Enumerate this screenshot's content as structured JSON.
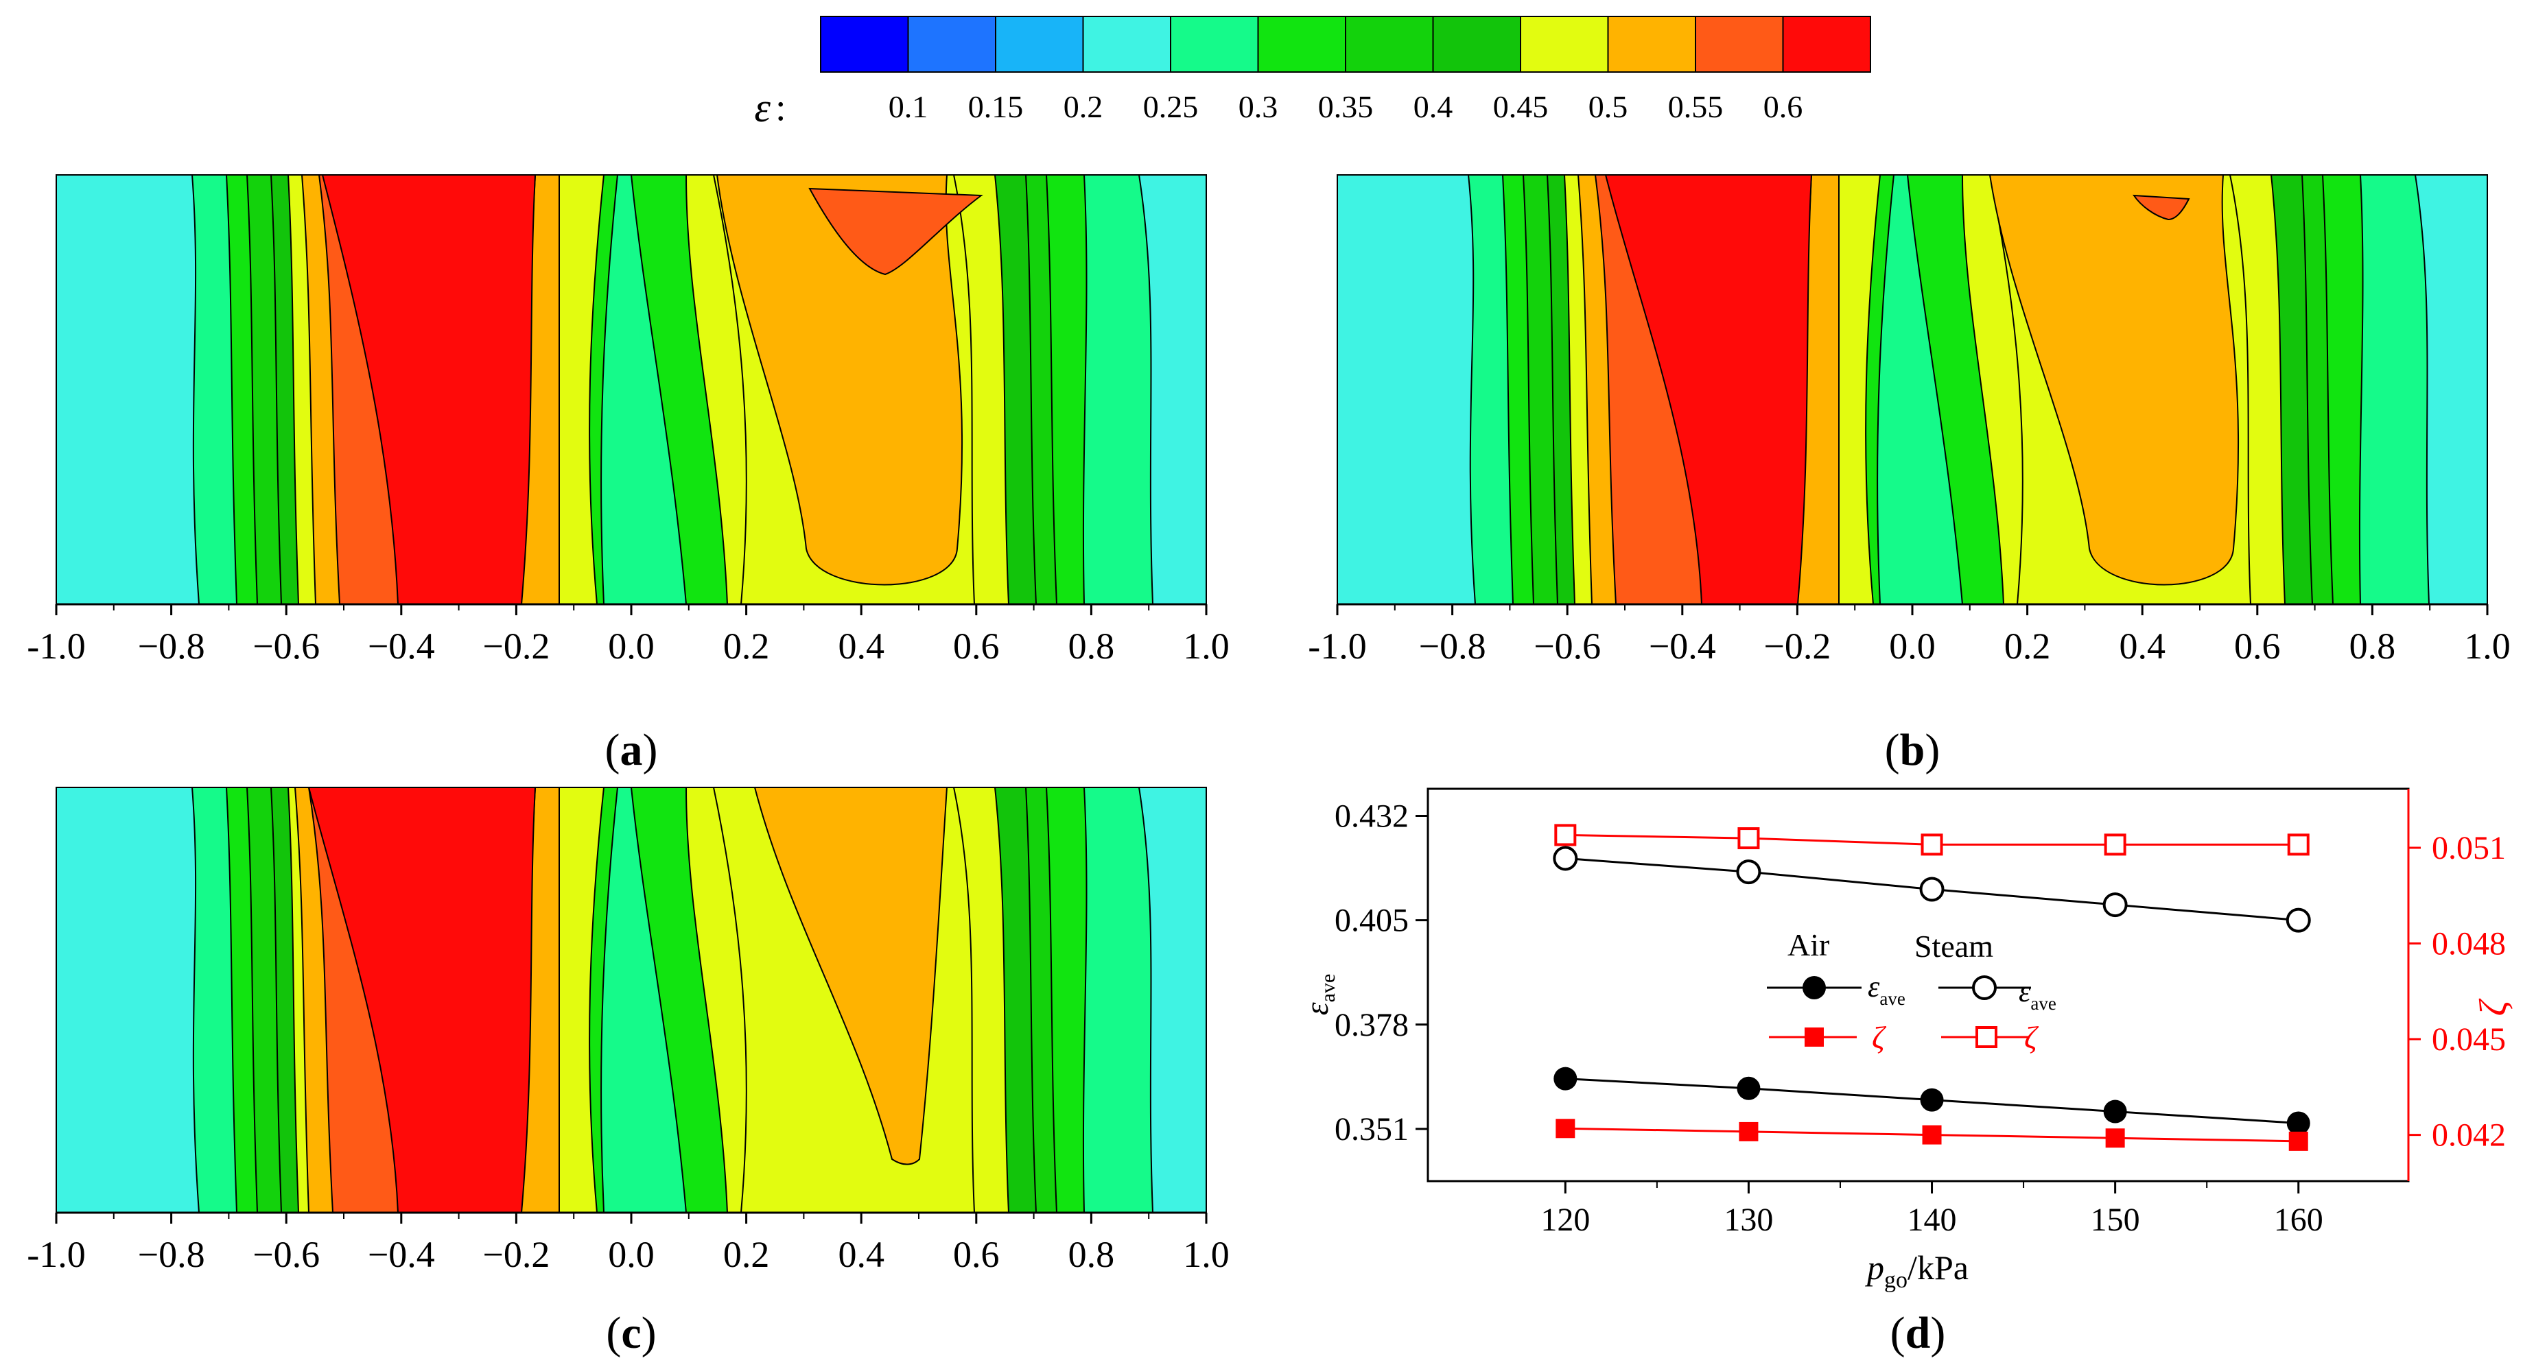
{
  "colorbar": {
    "symbol": "ε",
    "colon": ":",
    "colors": [
      "#0000ff",
      "#1e74ff",
      "#18b4f8",
      "#3ff3e3",
      "#15fa8a",
      "#11e410",
      "#13d20c",
      "#12c40b",
      "#e2fc10",
      "#ffb300",
      "#ff5a17",
      "#ff0a09"
    ],
    "tick_labels": [
      "0.1",
      "0.15",
      "0.2",
      "0.25",
      "0.3",
      "0.35",
      "0.4",
      "0.45",
      "0.5",
      "0.55",
      "0.6"
    ]
  },
  "panels": [
    {
      "id": "a",
      "letter": "a",
      "paren_open": "(",
      "paren_close": ")"
    },
    {
      "id": "b",
      "letter": "b",
      "paren_open": "(",
      "paren_close": ")"
    },
    {
      "id": "c",
      "letter": "c",
      "paren_open": "(",
      "paren_close": ")"
    },
    {
      "id": "d",
      "letter": "d",
      "paren_open": "(",
      "paren_close": ")"
    }
  ],
  "contour_axis": {
    "range": [
      -1.0,
      1.0
    ],
    "tick_values": [
      -1.0,
      -0.8,
      -0.6,
      -0.4,
      -0.2,
      0.0,
      0.2,
      0.4,
      0.6,
      0.8,
      1.0
    ],
    "tick_labels": [
      "-1.0",
      "−0.8",
      "−0.6",
      "−0.4",
      "−0.2",
      "0.0",
      "0.2",
      "0.4",
      "0.6",
      "0.8",
      "1.0"
    ]
  },
  "chart_data": [
    {
      "panel": "d",
      "type": "line",
      "xlabel_main": "p",
      "xlabel_sub": "go",
      "xlabel_unit": "/kPa",
      "ylabel_main": "ε",
      "ylabel_sub": "ave",
      "y2label": "ζ",
      "x": [
        120,
        130,
        140,
        150,
        160
      ],
      "xlim": [
        112.5,
        166
      ],
      "ylim": [
        0.3375,
        0.439
      ],
      "y2lim": [
        0.04055,
        0.05285
      ],
      "xticks": [
        120,
        130,
        140,
        150,
        160
      ],
      "xtick_labels": [
        "120",
        "130",
        "140",
        "150",
        "160"
      ],
      "yticks": [
        0.351,
        0.378,
        0.405,
        0.432
      ],
      "ytick_labels": [
        "0.351",
        "0.378",
        "0.405",
        "0.432"
      ],
      "y2ticks": [
        0.042,
        0.045,
        0.048,
        0.051
      ],
      "y2tick_labels": [
        "0.042",
        "0.045",
        "0.048",
        "0.051"
      ],
      "series": [
        {
          "name": "Air ε_ave",
          "axis": "left",
          "color": "#000000",
          "marker": "circle",
          "filled": true,
          "values": [
            0.364,
            0.3615,
            0.3585,
            0.3555,
            0.3525
          ]
        },
        {
          "name": "Steam ε_ave",
          "axis": "left",
          "color": "#000000",
          "marker": "circle",
          "filled": false,
          "values": [
            0.421,
            0.4175,
            0.413,
            0.409,
            0.405
          ]
        },
        {
          "name": "Air ζ",
          "axis": "right",
          "color": "#ff0000",
          "marker": "square",
          "filled": true,
          "values": [
            0.0422,
            0.0421,
            0.042,
            0.0419,
            0.0418
          ]
        },
        {
          "name": "Steam ζ",
          "axis": "right",
          "color": "#ff0000",
          "marker": "square",
          "filled": false,
          "values": [
            0.0514,
            0.0513,
            0.0511,
            0.0511,
            0.0511
          ]
        }
      ],
      "legend": {
        "col_air": "Air",
        "col_steam": "Steam",
        "eps_main": "ε",
        "eps_sub": "ave",
        "zeta": "ζ"
      }
    }
  ]
}
